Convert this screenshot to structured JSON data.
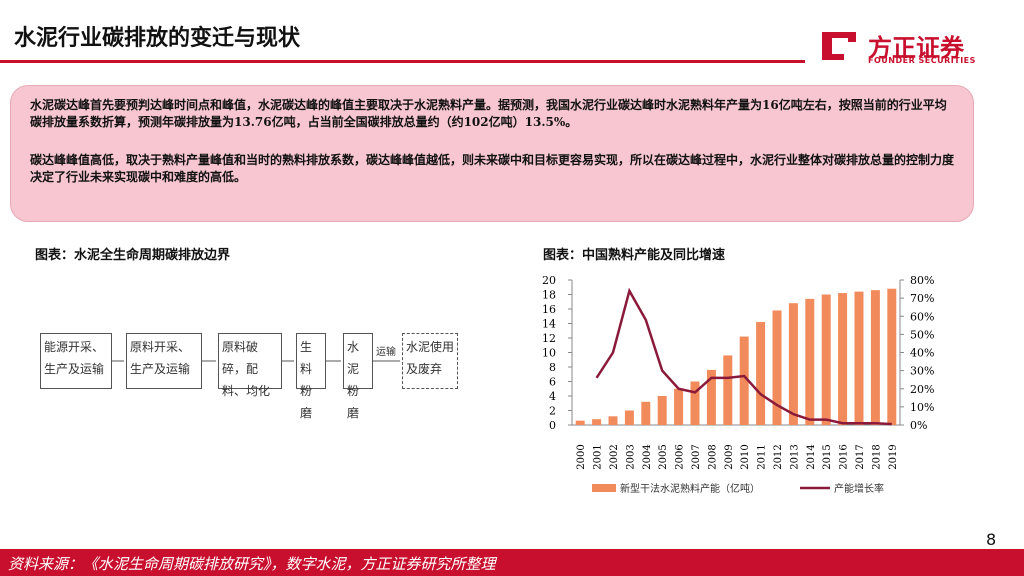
{
  "header": {
    "title": "水泥行业碳排放的变迁与现状",
    "logo": "方正证券",
    "logo_sub": "FOUNDER SECURITIES"
  },
  "summary": {
    "paragraphs": [
      "水泥碳达峰首先要预判达峰时间点和峰值，水泥碳达峰的峰值主要取决于水泥熟料产量。据预测，我国水泥行业碳达峰时水泥熟料年产量为16亿吨左右，按照当前的行业平均碳排放量系数折算，预测年碳排放量为13.76亿吨，占当前全国碳排放总量约（约102亿吨）13.5%。",
      "碳达峰峰值高低，取决于熟料产量峰值和当时的熟料排放系数，碳达峰峰值越低，则未来碳中和目标更容易实现，所以在碳达峰过程中，水泥行业整体对碳排放总量的控制力度决定了行业未来实现碳中和难度的高低。"
    ]
  },
  "figure1": {
    "title": "图表：水泥全生命周期碳排放边界",
    "nodes": [
      {
        "label": "能源开采、生产及运输"
      },
      {
        "label": "原料开采、生产及运输"
      },
      {
        "label": "原料破碎，配料、均化"
      },
      {
        "label": "生料粉磨"
      },
      {
        "label": "水泥粉磨"
      },
      {
        "label": "水泥使用及废弃"
      }
    ],
    "edge_label": "运输"
  },
  "chart_data": {
    "type": "bar_line",
    "title": "图表：中国熟料产能及同比增速",
    "categories": [
      "2000",
      "2001",
      "2002",
      "2003",
      "2004",
      "2005",
      "2006",
      "2007",
      "2008",
      "2009",
      "2010",
      "2011",
      "2012",
      "2013",
      "2014",
      "2015",
      "2016",
      "2017",
      "2018",
      "2019"
    ],
    "series": [
      {
        "name": "新型干法水泥熟料产能（亿吨）",
        "color": "#f28b5c",
        "values": [
          0.6,
          0.8,
          1.2,
          2.0,
          3.2,
          4.0,
          5.0,
          6.0,
          7.6,
          9.6,
          12.2,
          14.2,
          15.8,
          16.8,
          17.4,
          18.0,
          18.2,
          18.4,
          18.6,
          18.8
        ]
      },
      {
        "name": "产能增长率",
        "color": "#8b1a3a",
        "axis": "y2",
        "values": [
          null,
          26,
          40,
          74,
          58,
          30,
          20,
          18,
          26,
          26,
          27,
          17,
          11,
          6,
          3,
          3,
          1,
          1,
          1,
          0.5
        ]
      }
    ],
    "ylim": [
      0,
      20
    ],
    "yticks": [
      0,
      2,
      4,
      6,
      8,
      10,
      12,
      14,
      16,
      18,
      20
    ],
    "y2lim": [
      0,
      80
    ],
    "y2ticks": [
      {
        "value": 0,
        "label": "0%"
      },
      {
        "value": 10,
        "label": "10%"
      },
      {
        "value": 20,
        "label": "20%"
      },
      {
        "value": 30,
        "label": "30%"
      },
      {
        "value": 40,
        "label": "40%"
      },
      {
        "value": 50,
        "label": "50%"
      },
      {
        "value": 60,
        "label": "60%"
      },
      {
        "value": 70,
        "label": "70%"
      },
      {
        "value": 80,
        "label": "80%"
      }
    ]
  },
  "footer": {
    "source": "资料来源：《水泥生命周期碳排放研究》，数字水泥，方正证券研究所整理",
    "page": "8"
  }
}
